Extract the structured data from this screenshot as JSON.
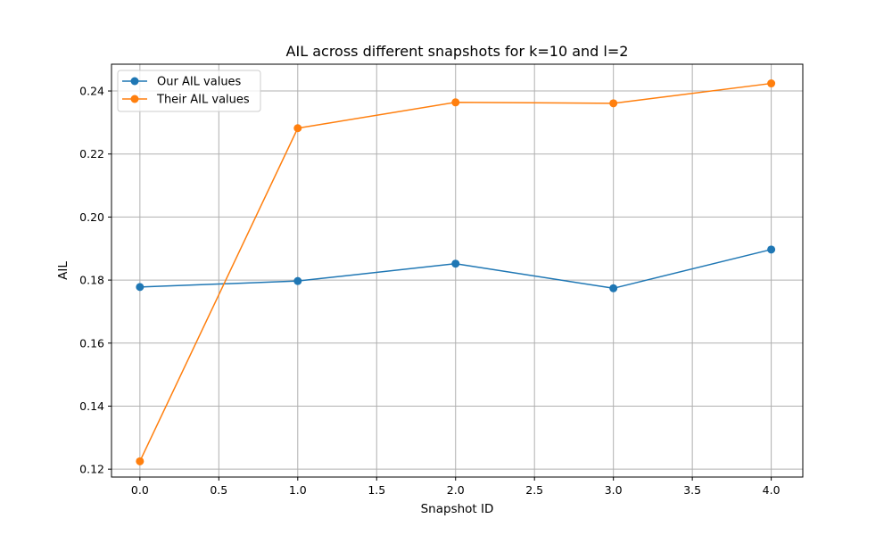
{
  "chart_data": {
    "type": "line",
    "title": "AIL across different snapshots for k=10 and l=2",
    "xlabel": "Snapshot ID",
    "ylabel": "AIL",
    "xlim": [
      -0.18,
      4.2
    ],
    "ylim": [
      0.1175,
      0.2485
    ],
    "xticks": [
      0.0,
      0.5,
      1.0,
      1.5,
      2.0,
      2.5,
      3.0,
      3.5,
      4.0
    ],
    "xtick_labels": [
      "0.0",
      "0.5",
      "1.0",
      "1.5",
      "2.0",
      "2.5",
      "3.0",
      "3.5",
      "4.0"
    ],
    "yticks": [
      0.12,
      0.14,
      0.16,
      0.18,
      0.2,
      0.22,
      0.24
    ],
    "ytick_labels": [
      "0.12",
      "0.14",
      "0.16",
      "0.18",
      "0.20",
      "0.22",
      "0.24"
    ],
    "grid": true,
    "legend_position": "top-left",
    "x": [
      0,
      1,
      2,
      3,
      4
    ],
    "series": [
      {
        "name": "Our AIL values",
        "color": "#1f77b4",
        "values": [
          0.1778,
          0.1797,
          0.1852,
          0.1774,
          0.1897
        ]
      },
      {
        "name": "Their AIL values",
        "color": "#ff7f0e",
        "values": [
          0.1225,
          0.2282,
          0.2364,
          0.2361,
          0.2424
        ]
      }
    ]
  }
}
